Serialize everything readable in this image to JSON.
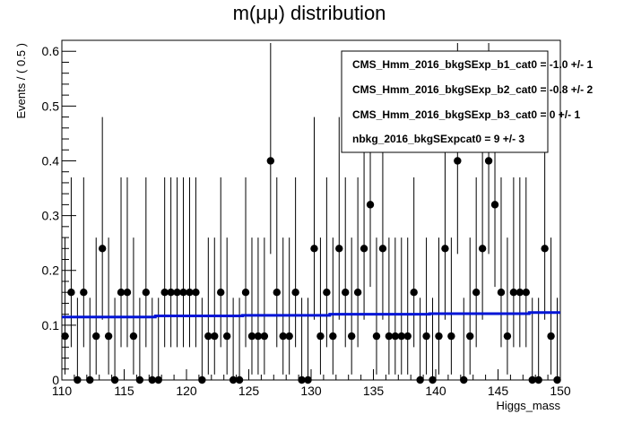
{
  "chart_data": {
    "type": "scatter",
    "title": "m(μμ) distribution",
    "xlabel": "Higgs_mass",
    "ylabel": "Events / ( 0.5 )",
    "xlim": [
      110,
      150
    ],
    "ylim": [
      0,
      0.62
    ],
    "x_ticks": [
      110,
      115,
      120,
      125,
      130,
      135,
      140,
      145,
      150
    ],
    "x_tick_labels": [
      "110",
      "115",
      "120",
      "125",
      "130",
      "135",
      "140",
      "145",
      "150"
    ],
    "y_ticks": [
      0,
      0.1,
      0.2,
      0.3,
      0.4,
      0.5,
      0.6
    ],
    "y_tick_labels": [
      "0",
      "0.1",
      "0.2",
      "0.3",
      "0.4",
      "0.5",
      "0.6"
    ],
    "grid": false,
    "legend_position": "top-right",
    "legend": [
      "CMS_Hmm_2016_bkgSExp_b1_cat0 = -1.0 +/- 1",
      "CMS_Hmm_2016_bkgSExp_b2_cat0 = -0.8 +/- 2",
      "CMS_Hmm_2016_bkgSExp_b3_cat0 =  0 +/- 1",
      "nbkg_2016_bkgSExpcat0 =  9 +/- 3"
    ],
    "series": [
      {
        "type": "points_with_errors",
        "color": "#000000",
        "x": [
          110.25,
          110.75,
          111.25,
          111.75,
          112.25,
          112.75,
          113.25,
          113.75,
          114.25,
          114.75,
          115.25,
          115.75,
          116.25,
          116.75,
          117.25,
          117.75,
          118.25,
          118.75,
          119.25,
          119.75,
          120.25,
          120.75,
          121.25,
          121.75,
          122.25,
          122.75,
          123.25,
          123.75,
          124.25,
          124.75,
          125.25,
          125.75,
          126.25,
          126.75,
          127.25,
          127.75,
          128.25,
          128.75,
          129.25,
          129.75,
          130.25,
          130.75,
          131.25,
          131.75,
          132.25,
          132.75,
          133.25,
          133.75,
          134.25,
          134.75,
          135.25,
          135.75,
          136.25,
          136.75,
          137.25,
          137.75,
          138.25,
          138.75,
          139.25,
          139.75,
          140.25,
          140.75,
          141.25,
          141.75,
          142.25,
          142.75,
          143.25,
          143.75,
          144.25,
          144.75,
          145.25,
          145.75,
          146.25,
          146.75,
          147.25,
          147.75,
          148.25,
          148.75,
          149.25,
          149.75
        ],
        "y": [
          0.08,
          0.16,
          0,
          0.16,
          0,
          0.08,
          0.24,
          0.08,
          0,
          0.16,
          0.16,
          0.08,
          0,
          0.16,
          0,
          0,
          0.16,
          0.16,
          0.16,
          0.16,
          0.16,
          0.16,
          0,
          0.08,
          0.08,
          0.16,
          0.08,
          0,
          0,
          0.16,
          0.08,
          0.08,
          0.08,
          0.4,
          0.16,
          0.08,
          0.08,
          0.16,
          0,
          0,
          0.24,
          0.08,
          0.16,
          0.08,
          0.24,
          0.16,
          0.08,
          0.16,
          0.24,
          0.32,
          0.08,
          0.24,
          0.08,
          0.08,
          0.08,
          0.08,
          0.16,
          0,
          0.08,
          0,
          0.08,
          0.24,
          0.08,
          0.4,
          0,
          0.08,
          0.16,
          0.24,
          0.4,
          0.32,
          0.16,
          0.08,
          0.16,
          0.16,
          0.16,
          0,
          0,
          0.24,
          0.08,
          0
        ],
        "y_err_low": [
          0.07,
          0.1,
          0,
          0.1,
          0,
          0.07,
          0.13,
          0.07,
          0,
          0.1,
          0.1,
          0.07,
          0,
          0.1,
          0,
          0,
          0.1,
          0.1,
          0.1,
          0.1,
          0.1,
          0.1,
          0,
          0.07,
          0.07,
          0.1,
          0.07,
          0,
          0,
          0.1,
          0.07,
          0.07,
          0.07,
          0.17,
          0.1,
          0.07,
          0.07,
          0.1,
          0,
          0,
          0.13,
          0.07,
          0.1,
          0.07,
          0.13,
          0.1,
          0.07,
          0.1,
          0.13,
          0.15,
          0.07,
          0.13,
          0.07,
          0.07,
          0.07,
          0.07,
          0.1,
          0,
          0.07,
          0,
          0.07,
          0.13,
          0.07,
          0.17,
          0,
          0.07,
          0.1,
          0.13,
          0.17,
          0.15,
          0.1,
          0.07,
          0.1,
          0.1,
          0.1,
          0,
          0,
          0.13,
          0.07,
          0
        ],
        "y_err_high": [
          0.18,
          0.21,
          0.15,
          0.21,
          0.15,
          0.18,
          0.24,
          0.18,
          0.15,
          0.21,
          0.21,
          0.18,
          0.15,
          0.21,
          0.15,
          0.15,
          0.21,
          0.21,
          0.21,
          0.21,
          0.21,
          0.21,
          0.15,
          0.18,
          0.18,
          0.21,
          0.18,
          0.15,
          0.15,
          0.21,
          0.18,
          0.18,
          0.18,
          0.27,
          0.21,
          0.18,
          0.18,
          0.21,
          0.15,
          0.15,
          0.24,
          0.18,
          0.21,
          0.18,
          0.24,
          0.21,
          0.18,
          0.21,
          0.24,
          0.25,
          0.18,
          0.24,
          0.18,
          0.18,
          0.18,
          0.18,
          0.21,
          0.15,
          0.18,
          0.15,
          0.18,
          0.24,
          0.18,
          0.27,
          0.15,
          0.18,
          0.21,
          0.24,
          0.27,
          0.25,
          0.21,
          0.18,
          0.21,
          0.21,
          0.21,
          0.15,
          0.15,
          0.24,
          0.18,
          0.15
        ]
      },
      {
        "type": "step_line",
        "color": "#0015d6",
        "x": [
          110,
          117.5,
          124.5,
          131.5,
          139.5,
          147.5,
          150
        ],
        "y": [
          0.115,
          0.117,
          0.118,
          0.12,
          0.121,
          0.123,
          0.123
        ]
      }
    ]
  }
}
